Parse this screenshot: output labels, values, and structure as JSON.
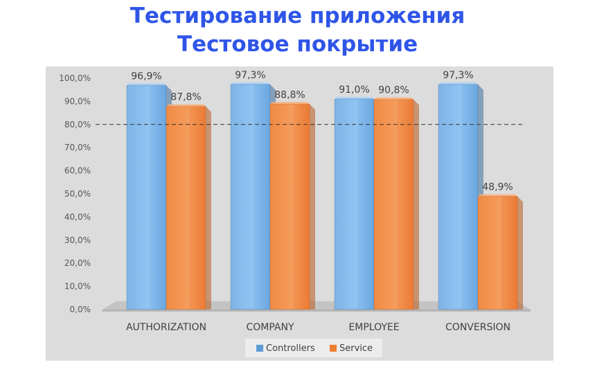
{
  "title": {
    "line1": "Тестирование приложения",
    "line2": "Тестовое покрытие"
  },
  "chart_data": {
    "type": "bar",
    "categories": [
      "AUTHORIZATION",
      "COMPANY",
      "EMPLOYEE",
      "CONVERSION"
    ],
    "series": [
      {
        "name": "Controllers",
        "values": [
          96.9,
          97.3,
          91.0,
          97.3
        ],
        "labels": [
          "96,9%",
          "97,3%",
          "91,0%",
          "97,3%"
        ],
        "color": "#5b9bd5"
      },
      {
        "name": "Service",
        "values": [
          87.8,
          88.8,
          90.8,
          48.9
        ],
        "labels": [
          "87,8%",
          "88,8%",
          "90,8%",
          "48,9%"
        ],
        "color": "#ed7d31"
      }
    ],
    "ylim": [
      0,
      100
    ],
    "yticks": [
      "0,0%",
      "10,0%",
      "20,0%",
      "30,0%",
      "40,0%",
      "50,0%",
      "60,0%",
      "70,0%",
      "80,0%",
      "90,0%",
      "100,0%"
    ],
    "threshold": 80,
    "legend_position": "bottom",
    "grid": false,
    "background": "#dcdcdc"
  }
}
